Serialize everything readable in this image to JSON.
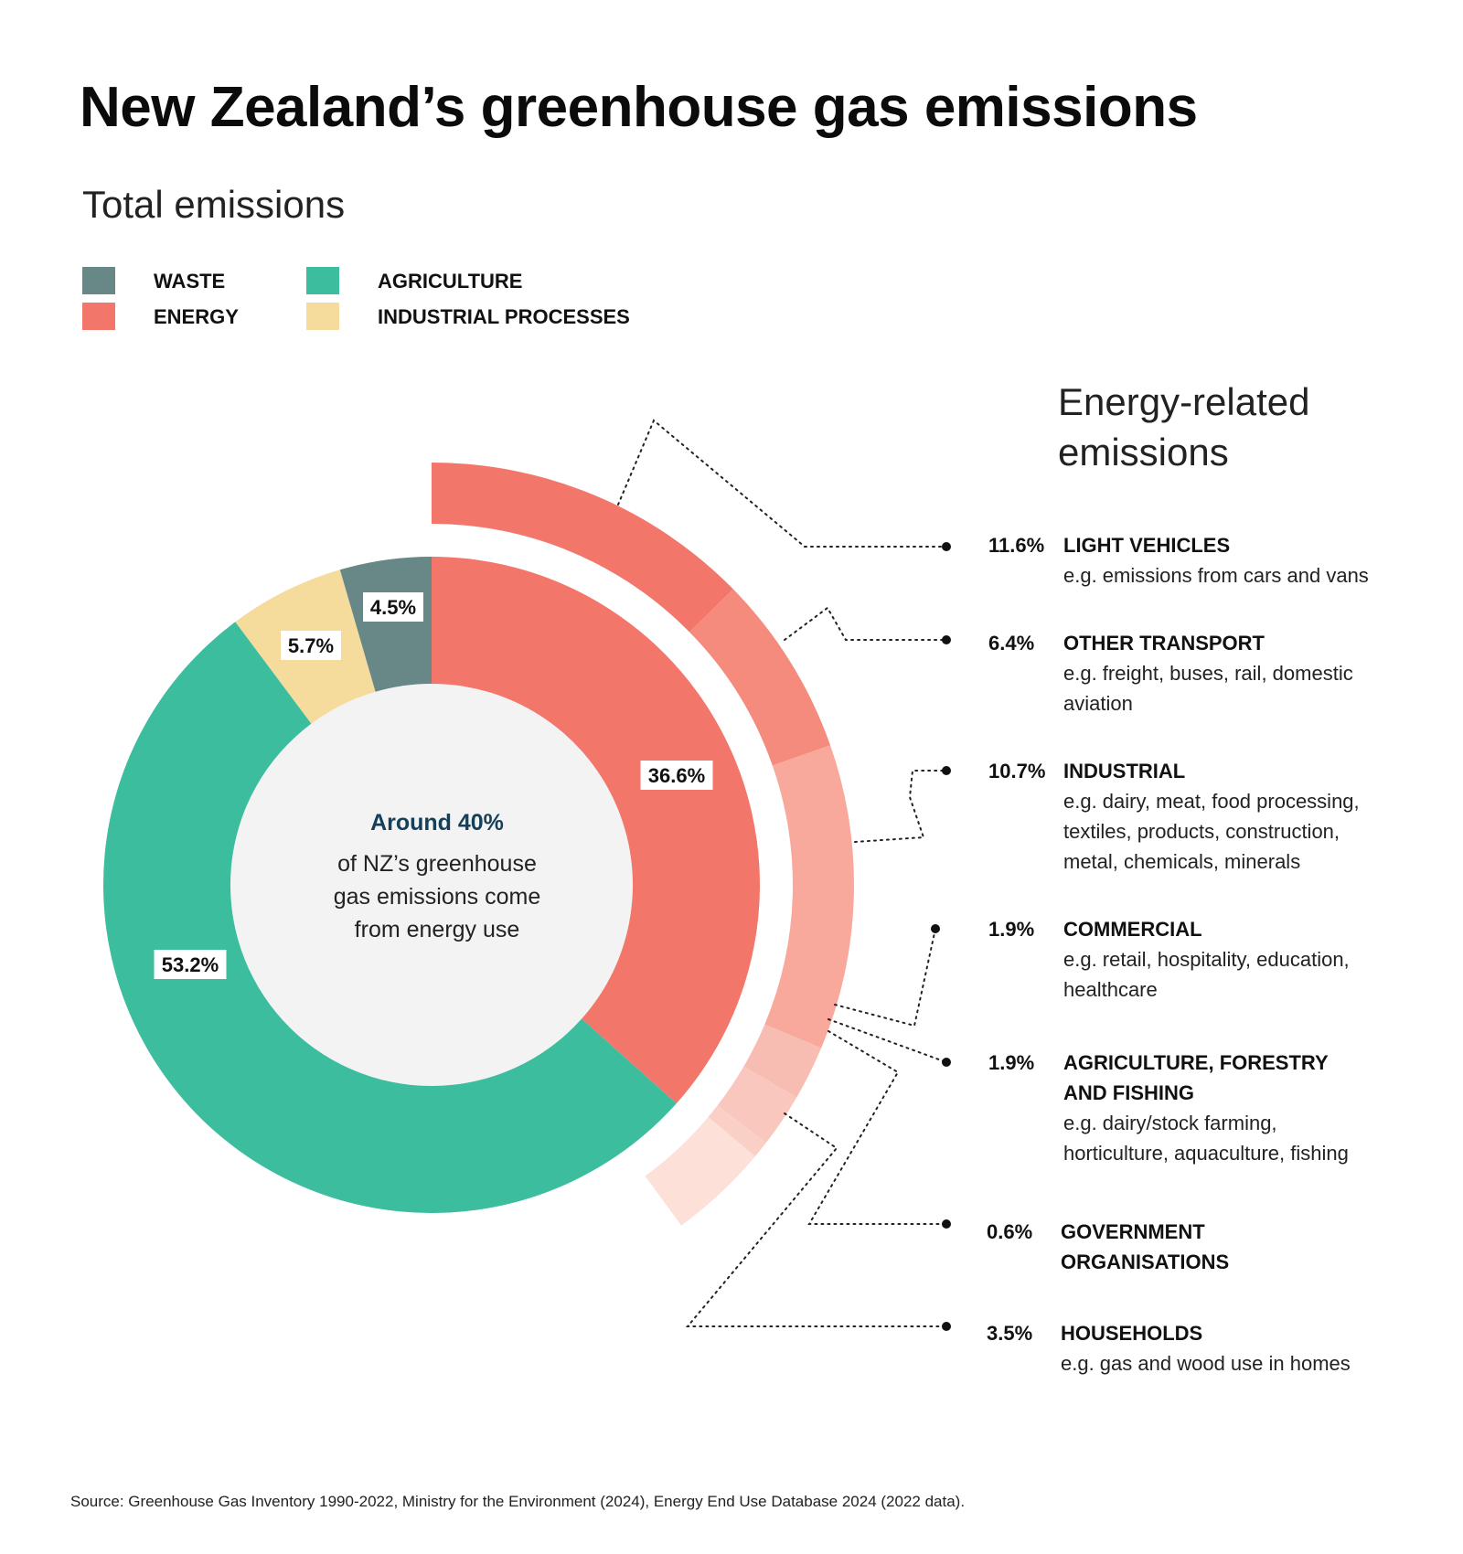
{
  "title": "New Zealand’s greenhouse gas emissions",
  "subtitle": "Total emissions",
  "legend": [
    {
      "label": "WASTE",
      "color": "#678886"
    },
    {
      "label": "AGRICULTURE",
      "color": "#3cbd9e"
    },
    {
      "label": "ENERGY",
      "color": "#f3766a"
    },
    {
      "label": "INDUSTRIAL PROCESSES",
      "color": "#f5db9c"
    }
  ],
  "energy_heading": "Energy-related emissions",
  "center": {
    "headline": "Around 40%",
    "lines": [
      "of NZ’s greenhouse",
      "gas emissions come",
      "from energy use"
    ]
  },
  "source": "Source: Greenhouse Gas Inventory 1990-2022, Ministry for the Environment (2024), Energy End Use Database 2024 (2022 data).",
  "chart_data": [
    {
      "type": "pie",
      "title": "Total emissions",
      "categories": [
        "ENERGY",
        "AGRICULTURE",
        "INDUSTRIAL PROCESSES",
        "WASTE"
      ],
      "values": [
        36.6,
        53.2,
        5.7,
        4.5
      ],
      "labels": [
        "36.6%",
        "53.2%",
        "5.7%",
        "4.5%"
      ],
      "colors": [
        "#f3766a",
        "#3cbd9e",
        "#f5db9c",
        "#678886"
      ],
      "center_color": "#f3f3f3"
    },
    {
      "type": "pie",
      "title": "Energy-related emissions",
      "categories": [
        "LIGHT VEHICLES",
        "OTHER TRANSPORT",
        "INDUSTRIAL",
        "COMMERCIAL",
        "AGRICULTURE, FORESTRY AND FISHING",
        "GOVERNMENT ORGANISATIONS",
        "HOUSEHOLDS"
      ],
      "values": [
        11.6,
        6.4,
        10.7,
        1.9,
        1.9,
        0.6,
        3.5
      ],
      "labels": [
        "11.6%",
        "6.4%",
        "10.7%",
        "1.9%",
        "1.9%",
        "0.6%",
        "3.5%"
      ],
      "colors": [
        "#f3766a",
        "#f58b7d",
        "#f8a99b",
        "#f8bdb2",
        "#f9c7bd",
        "#fad0c6",
        "#fde0d8"
      ],
      "details": [
        "e.g. emissions from cars and vans",
        "e.g. freight, buses, rail, domestic aviation",
        "e.g. dairy, meat, food processing, textiles, products, construction, metal, chemicals, minerals",
        "e.g. retail, hospitality, education, healthcare",
        "e.g. dairy/stock farming, horticulture, aquaculture, fishing",
        "",
        "e.g. gas and wood use in homes"
      ]
    }
  ]
}
